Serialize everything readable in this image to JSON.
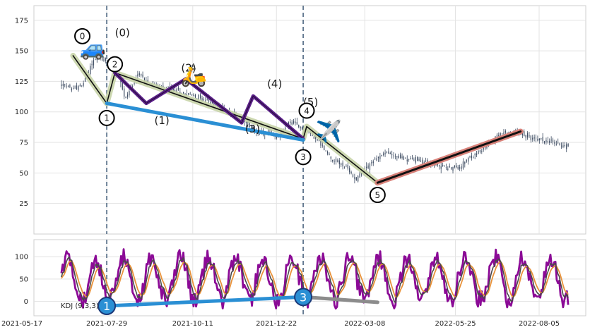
{
  "chart_data": [
    {
      "type": "candlestick",
      "panel": "price",
      "ylim": [
        0,
        187
      ],
      "yticks": [
        25,
        50,
        75,
        100,
        125,
        150,
        175
      ],
      "x_tick_labels": [
        "2021-05-17",
        "2021-07-29",
        "2021-10-11",
        "2021-12-22",
        "2022-03-08",
        "2022-05-25",
        "2022-08-05"
      ],
      "grid": true,
      "price_path": [
        {
          "x": 0.0,
          "y": 122
        },
        {
          "x": 0.02,
          "y": 119
        },
        {
          "x": 0.04,
          "y": 121
        },
        {
          "x": 0.06,
          "y": 140
        },
        {
          "x": 0.07,
          "y": 146
        },
        {
          "x": 0.09,
          "y": 140
        },
        {
          "x": 0.11,
          "y": 139
        },
        {
          "x": 0.125,
          "y": 110
        },
        {
          "x": 0.15,
          "y": 131
        },
        {
          "x": 0.19,
          "y": 120
        },
        {
          "x": 0.23,
          "y": 117
        },
        {
          "x": 0.27,
          "y": 112
        },
        {
          "x": 0.31,
          "y": 105
        },
        {
          "x": 0.35,
          "y": 95
        },
        {
          "x": 0.39,
          "y": 83
        },
        {
          "x": 0.43,
          "y": 80
        },
        {
          "x": 0.45,
          "y": 92
        },
        {
          "x": 0.5,
          "y": 80
        },
        {
          "x": 0.53,
          "y": 63
        },
        {
          "x": 0.56,
          "y": 55
        },
        {
          "x": 0.58,
          "y": 45
        },
        {
          "x": 0.61,
          "y": 58
        },
        {
          "x": 0.64,
          "y": 67
        },
        {
          "x": 0.67,
          "y": 62
        },
        {
          "x": 0.7,
          "y": 61
        },
        {
          "x": 0.75,
          "y": 55
        },
        {
          "x": 0.78,
          "y": 54
        },
        {
          "x": 0.82,
          "y": 66
        },
        {
          "x": 0.86,
          "y": 80
        },
        {
          "x": 0.89,
          "y": 84
        },
        {
          "x": 0.93,
          "y": 78
        },
        {
          "x": 0.96,
          "y": 76
        },
        {
          "x": 1.0,
          "y": 72
        }
      ],
      "date_span": [
        "2021-06-20",
        "2022-08-30"
      ],
      "vertical_lines": [
        "2021-07-29",
        "2022-01-14"
      ],
      "overlays": [
        {
          "name": "impulse",
          "color": "#c8d4a8",
          "points": [
            [
              "2021-06-30",
              146
            ],
            [
              "2021-07-29",
              107
            ],
            [
              "2021-08-05",
              132
            ],
            [
              "2022-01-14",
              78
            ],
            [
              "2022-01-17",
              88
            ],
            [
              "2022-03-19",
              42
            ]
          ]
        },
        {
          "name": "impulse-inner",
          "color": "#111111",
          "points": [
            [
              "2021-06-30",
              146
            ],
            [
              "2021-07-29",
              107
            ],
            [
              "2021-08-05",
              132
            ],
            [
              "2022-01-14",
              78
            ],
            [
              "2022-01-17",
              88
            ],
            [
              "2022-03-19",
              42
            ]
          ]
        },
        {
          "name": "sub-waves",
          "color": "#5b1f8a",
          "points": [
            [
              "2021-08-05",
              132
            ],
            [
              "2021-09-01",
              107
            ],
            [
              "2021-10-05",
              127
            ],
            [
              "2021-11-22",
              91
            ],
            [
              "2021-12-02",
              113
            ],
            [
              "2022-01-14",
              78
            ]
          ]
        },
        {
          "name": "support-trend",
          "color": "#2a8fd4",
          "points": [
            [
              "2021-07-29",
              107
            ],
            [
              "2022-01-14",
              77
            ]
          ]
        },
        {
          "name": "rally-trend",
          "color": "#d9827a",
          "points": [
            [
              "2022-03-19",
              42
            ],
            [
              "2022-07-20",
              84
            ]
          ]
        },
        {
          "name": "rally-trend-inner",
          "color": "#111111",
          "points": [
            [
              "2022-03-19",
              42
            ],
            [
              "2022-07-20",
              84
            ]
          ]
        }
      ],
      "wave_labels": [
        {
          "text": "(0)",
          "date": "2021-08-05",
          "y": 162
        },
        {
          "text": "(1)",
          "date": "2021-09-08",
          "y": 90
        },
        {
          "text": "(2)",
          "date": "2021-10-01",
          "y": 133
        },
        {
          "text": "(3)",
          "date": "2021-11-25",
          "y": 83
        },
        {
          "text": "(4)",
          "date": "2021-12-14",
          "y": 120
        },
        {
          "text": "(5)",
          "date": "2022-01-14",
          "y": 105
        }
      ],
      "circle_labels": [
        {
          "text": "0",
          "date": "2021-07-08",
          "y": 162
        },
        {
          "text": "1",
          "date": "2021-07-29",
          "y": 95
        },
        {
          "text": "2",
          "date": "2021-08-05",
          "y": 139
        },
        {
          "text": "3",
          "date": "2022-01-14",
          "y": 63
        },
        {
          "text": "4",
          "date": "2022-01-17",
          "y": 101
        },
        {
          "text": "5",
          "date": "2022-03-19",
          "y": 32
        }
      ],
      "emoji_markers": [
        {
          "name": "car",
          "glyph": "🚙",
          "date": "2021-07-17",
          "y": 152
        },
        {
          "name": "scooter",
          "glyph": "🛵",
          "date": "2021-10-12",
          "y": 130
        },
        {
          "name": "airplane",
          "glyph": "✈️",
          "date": "2022-02-05",
          "y": 84
        }
      ]
    },
    {
      "type": "line",
      "panel": "indicator",
      "title": "KDJ (9,3,3)",
      "ylim": [
        -32,
        138
      ],
      "yticks": [
        0,
        50,
        100
      ],
      "grid": true,
      "series": [
        {
          "key": "J",
          "color": "#8b0a96"
        },
        {
          "key": "D",
          "color": "#e8923a"
        },
        {
          "key": "K",
          "color": "#4a4a4a"
        }
      ],
      "signal_line": {
        "color": "#2a8fd4",
        "points": [
          [
            "2021-07-29",
            -10
          ],
          [
            "2022-01-14",
            10
          ]
        ]
      },
      "signal_tail": {
        "color": "#8c8c8c",
        "points": [
          [
            "2022-01-14",
            10
          ],
          [
            "2022-03-19",
            -2
          ]
        ]
      },
      "signal_markers": [
        {
          "text": "1",
          "date": "2021-07-29",
          "y": -10
        },
        {
          "text": "3",
          "date": "2022-01-14",
          "y": 10
        }
      ]
    }
  ]
}
